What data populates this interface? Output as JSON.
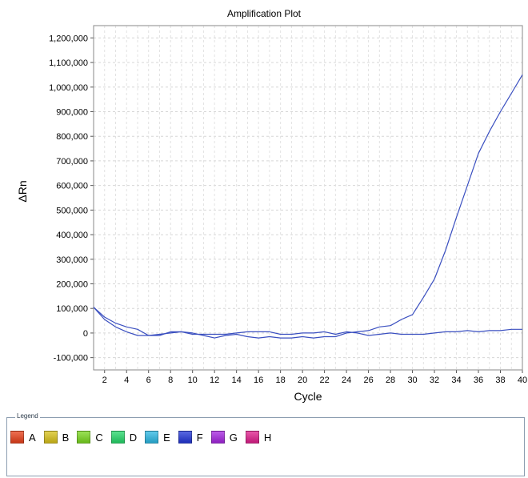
{
  "chart_data": {
    "type": "line",
    "title": "Amplification Plot",
    "xlabel": "Cycle",
    "ylabel": "ΔRn",
    "xlim": [
      1,
      40
    ],
    "ylim": [
      -150000,
      1250000
    ],
    "x_ticks": [
      2,
      4,
      6,
      8,
      10,
      12,
      14,
      16,
      18,
      20,
      22,
      24,
      26,
      28,
      30,
      32,
      34,
      36,
      38,
      40
    ],
    "y_ticks": [
      -100000,
      0,
      100000,
      200000,
      300000,
      400000,
      500000,
      600000,
      700000,
      800000,
      900000,
      1000000,
      1100000,
      1200000
    ],
    "y_tick_labels": [
      "-100,000",
      "0",
      "100,000",
      "200,000",
      "300,000",
      "400,000",
      "500,000",
      "600,000",
      "700,000",
      "800,000",
      "900,000",
      "1,000,000",
      "1,100,000",
      "1,200,000"
    ],
    "grid": true,
    "line_color": "#3a4fc0",
    "x": [
      1,
      2,
      3,
      4,
      5,
      6,
      7,
      8,
      9,
      10,
      11,
      12,
      13,
      14,
      15,
      16,
      17,
      18,
      19,
      20,
      21,
      22,
      23,
      24,
      25,
      26,
      27,
      28,
      29,
      30,
      31,
      32,
      33,
      34,
      35,
      36,
      37,
      38,
      39,
      40
    ],
    "series": [
      {
        "values": [
          105000,
          55000,
          25000,
          5000,
          -10000,
          -10000,
          -5000,
          0,
          5000,
          0,
          -10000,
          -20000,
          -10000,
          -5000,
          -15000,
          -20000,
          -15000,
          -20000,
          -20000,
          -15000,
          -20000,
          -15000,
          -15000,
          0,
          5000,
          10000,
          25000,
          30000,
          55000,
          75000,
          145000,
          220000,
          335000,
          470000,
          600000,
          730000,
          820000,
          900000,
          975000,
          1050000
        ]
      },
      {
        "values": [
          105000,
          65000,
          40000,
          25000,
          15000,
          -10000,
          -10000,
          5000,
          5000,
          -5000,
          -5000,
          -5000,
          -5000,
          0,
          5000,
          5000,
          5000,
          -5000,
          -5000,
          0,
          0,
          5000,
          -5000,
          5000,
          0,
          -10000,
          -5000,
          0,
          -5000,
          -5000,
          -5000,
          0,
          5000,
          5000,
          10000,
          5000,
          10000,
          10000,
          15000,
          15000
        ]
      }
    ]
  },
  "legend": {
    "title": "Legend",
    "items": [
      {
        "label": "A",
        "color": "#e8401a"
      },
      {
        "label": "B",
        "color": "#d9c21a"
      },
      {
        "label": "C",
        "color": "#7ad81f"
      },
      {
        "label": "D",
        "color": "#25d86a"
      },
      {
        "label": "E",
        "color": "#2cb8e4"
      },
      {
        "label": "F",
        "color": "#2236d8"
      },
      {
        "label": "G",
        "color": "#a525e0"
      },
      {
        "label": "H",
        "color": "#e01e8c"
      }
    ]
  }
}
